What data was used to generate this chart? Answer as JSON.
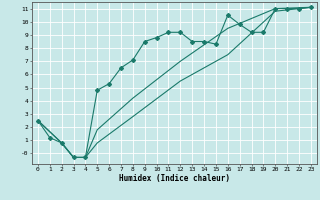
{
  "xlabel": "Humidex (Indice chaleur)",
  "bg_color": "#c8e8e8",
  "grid_color": "#ffffff",
  "line_color": "#1a7a6a",
  "xlim": [
    -0.5,
    23.5
  ],
  "ylim": [
    -0.8,
    11.5
  ],
  "xticks": [
    0,
    1,
    2,
    3,
    4,
    5,
    6,
    7,
    8,
    9,
    10,
    11,
    12,
    13,
    14,
    15,
    16,
    17,
    18,
    19,
    20,
    21,
    22,
    23
  ],
  "yticks": [
    0,
    1,
    2,
    3,
    4,
    5,
    6,
    7,
    8,
    9,
    10,
    11
  ],
  "ytick_labels": [
    "-0",
    "1",
    "2",
    "3",
    "4",
    "5",
    "6",
    "7",
    "8",
    "9",
    "10",
    "11"
  ],
  "line1_x": [
    0,
    1,
    2,
    3,
    4,
    5,
    6,
    7,
    8,
    9,
    10,
    11,
    12,
    13,
    14,
    15,
    16,
    17,
    18,
    19,
    20,
    21,
    22,
    23
  ],
  "line1_y": [
    2.5,
    1.2,
    0.8,
    -0.3,
    -0.3,
    4.8,
    5.3,
    6.5,
    7.1,
    8.5,
    8.8,
    9.2,
    9.2,
    8.5,
    8.5,
    8.3,
    10.5,
    9.8,
    9.2,
    9.2,
    11.0,
    11.0,
    11.0,
    11.1
  ],
  "line2_x": [
    0,
    2,
    3,
    4,
    5,
    8,
    12,
    16,
    20,
    23
  ],
  "line2_y": [
    2.5,
    0.8,
    -0.3,
    -0.3,
    0.8,
    2.8,
    5.5,
    7.5,
    10.8,
    11.1
  ],
  "line3_x": [
    0,
    2,
    3,
    4,
    5,
    8,
    12,
    16,
    20,
    23
  ],
  "line3_y": [
    2.5,
    0.8,
    -0.3,
    -0.3,
    1.8,
    4.2,
    7.0,
    9.5,
    11.0,
    11.1
  ]
}
